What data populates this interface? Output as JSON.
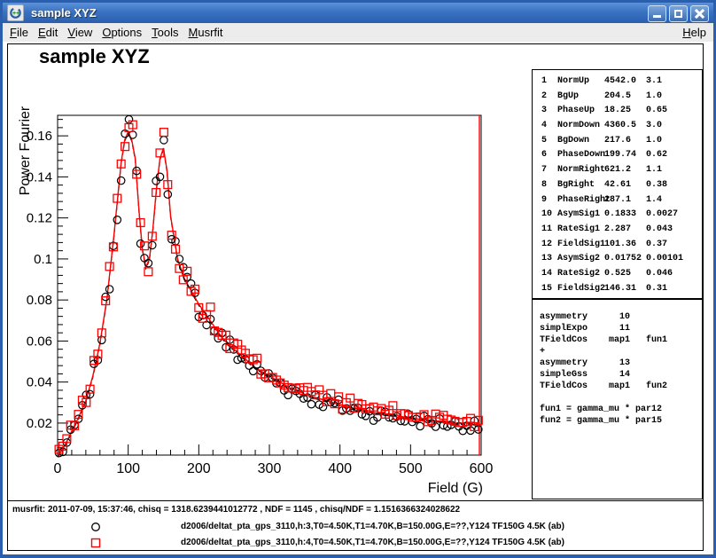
{
  "window": {
    "title": "sample XYZ",
    "buttons": {
      "minimize": "minimize",
      "maximize": "maximize",
      "close": "close"
    }
  },
  "menu": {
    "items": [
      {
        "label": "File"
      },
      {
        "label": "Edit"
      },
      {
        "label": "View"
      },
      {
        "label": "Options"
      },
      {
        "label": "Tools"
      },
      {
        "label": "Musrfit"
      }
    ],
    "help": {
      "label": "Help"
    }
  },
  "plot": {
    "title": "sample XYZ"
  },
  "param_box": {
    "rows": [
      [
        "1",
        "NormUp",
        "4542.0",
        "3.1"
      ],
      [
        "2",
        "BgUp",
        "204.5",
        "1.0"
      ],
      [
        "3",
        "PhaseUp",
        "18.25",
        "0.65"
      ],
      [
        "4",
        "NormDown",
        "4360.5",
        "3.0"
      ],
      [
        "5",
        "BgDown",
        "217.6",
        "1.0"
      ],
      [
        "6",
        "PhaseDown",
        "199.74",
        "0.62"
      ],
      [
        "7",
        "NormRight",
        "621.2",
        "1.1"
      ],
      [
        "8",
        "BgRight",
        "42.61",
        "0.38"
      ],
      [
        "9",
        "PhaseRight",
        "287.1",
        "1.4"
      ],
      [
        "10",
        "AsymSig1",
        "0.1833",
        "0.0027"
      ],
      [
        "11",
        "RateSig1",
        "2.287",
        "0.043"
      ],
      [
        "12",
        "FieldSig1",
        "101.36",
        "0.37"
      ],
      [
        "13",
        "AsymSig2",
        "0.01752",
        "0.00101"
      ],
      [
        "14",
        "RateSig2",
        "0.525",
        "0.046"
      ],
      [
        "15",
        "FieldSig2",
        "146.31",
        "0.31"
      ]
    ]
  },
  "theory_box": {
    "lines": [
      "asymmetry      10",
      "simplExpo      11",
      "TFieldCos    map1   fun1",
      "+",
      "asymmetry      13",
      "simpleGss      14",
      "TFieldCos    map1   fun2",
      "",
      "fun1 = gamma_mu * par12",
      "fun2 = gamma_mu * par15"
    ]
  },
  "status": {
    "line": "musrfit: 2011-07-09, 15:37:46, chisq = 1318.6239441012772 , NDF = 1145 , chisq/NDF = 1.1516366324028622",
    "legend": [
      {
        "marker": "circle",
        "color": "#000000",
        "label": "d2006/deltat_pta_gps_3110,h:3,T0=4.50K,T1=4.70K,B=150.00G,E=??,Y124 TF150G 4.5K (ab)"
      },
      {
        "marker": "square",
        "color": "#ff0000",
        "label": "d2006/deltat_pta_gps_3110,h:4,T0=4.50K,T1=4.70K,B=150.00G,E=??,Y124 TF150G 4.5K (ab)"
      }
    ]
  },
  "chart_data": {
    "type": "scatter",
    "title": "sample XYZ",
    "xlabel": "Field (G)",
    "ylabel": "Power Fourier",
    "xlim": [
      0,
      600
    ],
    "ylim": [
      0.0044,
      0.17
    ],
    "xticks": [
      0,
      100,
      200,
      300,
      400,
      500,
      600
    ],
    "yticks": [
      0.02,
      0.04,
      0.06,
      0.08,
      0.1,
      0.12,
      0.14,
      0.16
    ],
    "x_minor_step": 20,
    "y_minor_step": 0.004,
    "grid": false,
    "legend_position": "bottom-status-pad",
    "fit_curve": {
      "color": "#ff0000",
      "shadow_color": "#000000",
      "x": [
        0,
        10,
        20,
        30,
        40,
        50,
        60,
        70,
        80,
        90,
        95,
        100,
        105,
        110,
        115,
        120,
        125,
        130,
        135,
        140,
        145,
        150,
        155,
        160,
        170,
        180,
        190,
        200,
        210,
        220,
        230,
        240,
        250,
        260,
        270,
        280,
        290,
        300,
        310,
        320,
        330,
        340,
        350,
        360,
        370,
        380,
        390,
        400,
        410,
        420,
        430,
        440,
        450,
        460,
        470,
        480,
        490,
        500,
        510,
        520,
        530,
        540,
        550,
        560,
        570,
        580,
        590,
        600
      ],
      "y": [
        0.004,
        0.009,
        0.016,
        0.023,
        0.031,
        0.043,
        0.059,
        0.081,
        0.112,
        0.147,
        0.158,
        0.162,
        0.158,
        0.149,
        0.125,
        0.105,
        0.096,
        0.1,
        0.115,
        0.134,
        0.149,
        0.154,
        0.143,
        0.121,
        0.1,
        0.09,
        0.084,
        0.078,
        0.073,
        0.068,
        0.063,
        0.059,
        0.056,
        0.053,
        0.05,
        0.047,
        0.045,
        0.043,
        0.041,
        0.039,
        0.037,
        0.036,
        0.034,
        0.033,
        0.032,
        0.031,
        0.03,
        0.029,
        0.028,
        0.027,
        0.027,
        0.026,
        0.025,
        0.025,
        0.024,
        0.024,
        0.023,
        0.023,
        0.022,
        0.022,
        0.021,
        0.021,
        0.021,
        0.02,
        0.02,
        0.02,
        0.019,
        0.019
      ]
    },
    "series": [
      {
        "name": "d2006/deltat_pta_gps_3110,h:3,T0=4.50K,T1=4.70K,B=150.00G,E=??,Y124 TF150G 4.5K (ab)",
        "marker": "circle",
        "color": "#000000",
        "x_start": 2,
        "x_step": 5.5,
        "count": 109,
        "seed": 7,
        "bias": -0.0008
      },
      {
        "name": "d2006/deltat_pta_gps_3110,h:4,T0=4.50K,T1=4.70K,B=150.00G,E=??,Y124 TF150G 4.5K (ab)",
        "marker": "square",
        "color": "#ff0000",
        "x_start": 2,
        "x_step": 5.5,
        "count": 109,
        "seed": 13,
        "bias": 0.0014
      }
    ]
  }
}
